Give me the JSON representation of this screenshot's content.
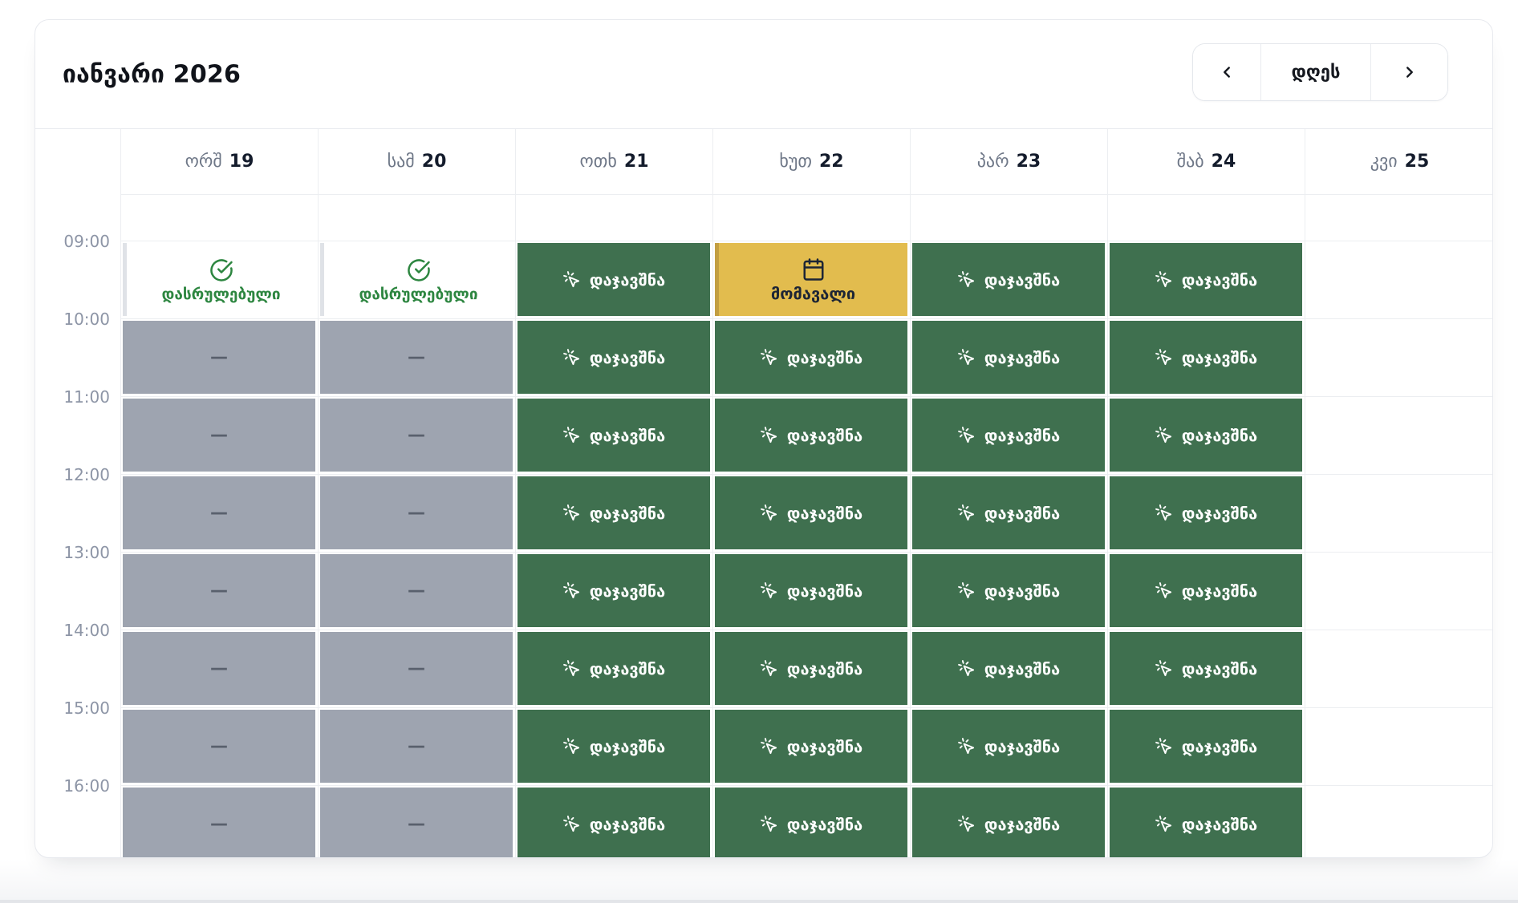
{
  "header": {
    "title": "იანვარი 2026",
    "nav": {
      "today_label": "დღეს"
    }
  },
  "days": [
    {
      "abbr": "ორშ",
      "num": "19"
    },
    {
      "abbr": "სამ",
      "num": "20"
    },
    {
      "abbr": "ოთხ",
      "num": "21"
    },
    {
      "abbr": "ხუთ",
      "num": "22"
    },
    {
      "abbr": "პარ",
      "num": "23"
    },
    {
      "abbr": "შაბ",
      "num": "24"
    },
    {
      "abbr": "კვი",
      "num": "25"
    }
  ],
  "times": [
    "09:00",
    "10:00",
    "11:00",
    "12:00",
    "13:00",
    "14:00",
    "15:00",
    "16:00"
  ],
  "labels": {
    "book": "დაჯავშნა",
    "completed": "დასრულებული",
    "upcoming": "მომავალი",
    "closed_dash": "—"
  },
  "grid": {
    "rows": [
      [
        "completed",
        "completed",
        "book",
        "upcoming",
        "book",
        "book",
        "empty"
      ],
      [
        "closed",
        "closed",
        "book",
        "book",
        "book",
        "book",
        "empty"
      ],
      [
        "closed",
        "closed",
        "book",
        "book",
        "book",
        "book",
        "empty"
      ],
      [
        "closed",
        "closed",
        "book",
        "book",
        "book",
        "book",
        "empty"
      ],
      [
        "closed",
        "closed",
        "book",
        "book",
        "book",
        "book",
        "empty"
      ],
      [
        "closed",
        "closed",
        "book",
        "book",
        "book",
        "book",
        "empty"
      ],
      [
        "closed",
        "closed",
        "book",
        "book",
        "book",
        "book",
        "empty"
      ],
      [
        "closed",
        "closed",
        "book",
        "book",
        "book",
        "book",
        "empty"
      ]
    ]
  },
  "colors": {
    "book_bg": "#3F704F",
    "upcoming_bg": "#E2BC4E",
    "upcoming_accent": "#C29E42",
    "closed_bg": "#9EA4B0",
    "completed_fg": "#2D8640",
    "completed_accent": "#DFE2E7"
  }
}
